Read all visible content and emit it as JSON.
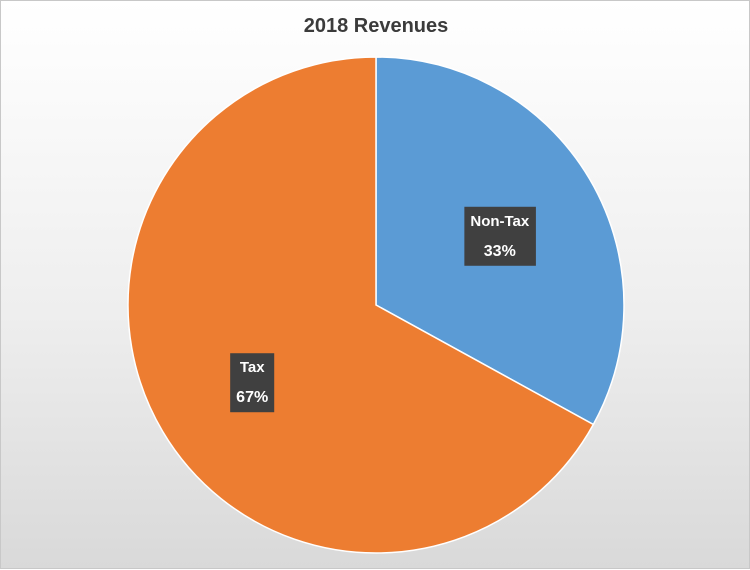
{
  "chart_data": {
    "type": "pie",
    "title": "2018 Revenues",
    "slices": [
      {
        "label": "Non-Tax",
        "value": 33,
        "value_label": "33%",
        "color": "#5b9bd5"
      },
      {
        "label": "Tax",
        "value": 67,
        "value_label": "67%",
        "color": "#ed7d31"
      }
    ],
    "start_angle_deg": 0,
    "direction": "clockwise",
    "label_box_color": "#404040",
    "legend": "none"
  }
}
